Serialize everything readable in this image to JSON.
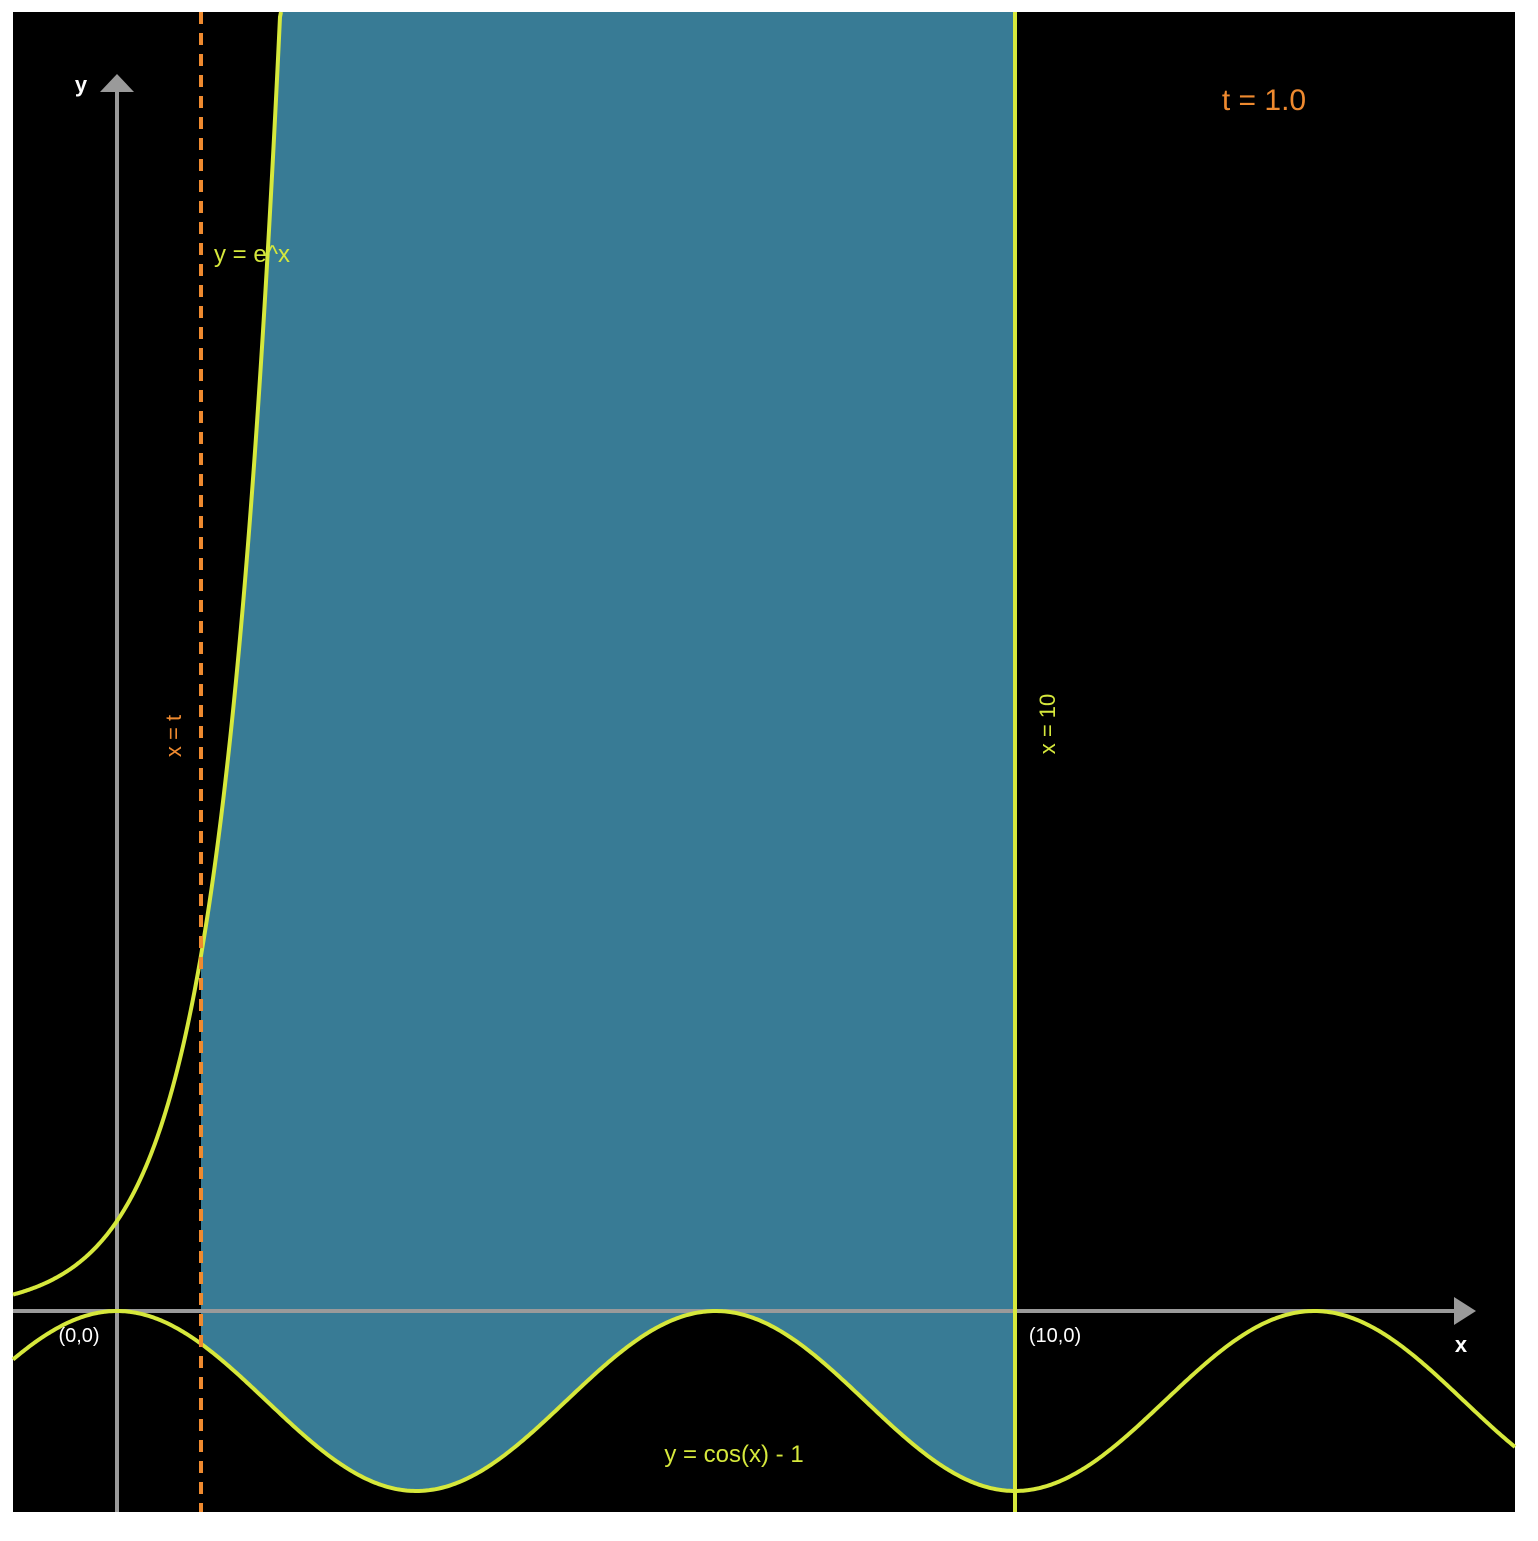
{
  "labels": {
    "y_axis": "y",
    "x_axis": "x",
    "time": "t = 1.0",
    "exp_curve": "y = e^x",
    "cos_curve": "y = cos(x) - 1",
    "line_t": "x = t",
    "line_10": "x = 10",
    "origin": "(0,0)",
    "point_10": "(10,0)"
  },
  "colors": {
    "background": "#000000",
    "axis": "#9a9a9a",
    "curve": "#d6e83c",
    "fill": "#387b95",
    "accent": "#ef8a2f",
    "text": "#ffffff"
  },
  "chart_data": {
    "type": "area",
    "t": 1.0,
    "curves": [
      "y = e^x",
      "y = cos(x) - 1"
    ],
    "bounds": {
      "left": "x = t",
      "right": "x = 10"
    },
    "shaded_region": "between y = e^x and y = cos(x) - 1, from x = t to x = 10",
    "marked_points": [
      "(0,0)",
      "(10,0)"
    ]
  }
}
